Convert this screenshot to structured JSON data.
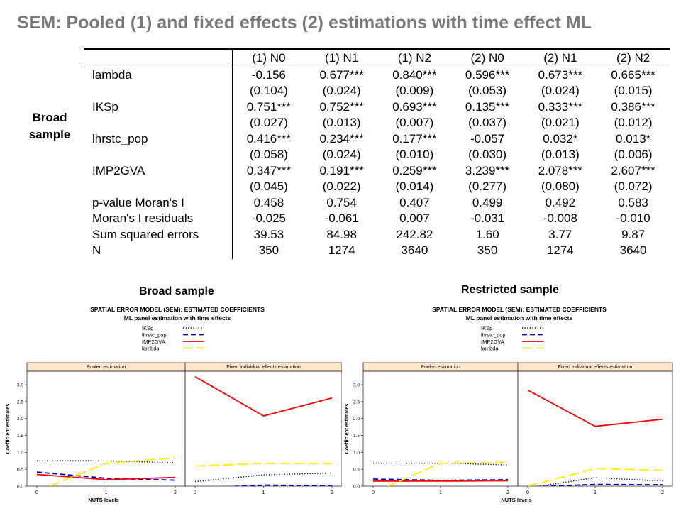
{
  "title": "SEM: Pooled (1) and fixed effects (2) estimations with time effect ML",
  "side_label": "Broad sample",
  "table": {
    "columns": [
      "(1) N0",
      "(1) N1",
      "(1) N2",
      "(2) N0",
      "(2) N1",
      "(2) N2"
    ],
    "rows": [
      {
        "label": "lambda",
        "values": [
          "-0.156",
          "0.677***",
          "0.840***",
          "0.596***",
          "0.673***",
          "0.665***"
        ]
      },
      {
        "label": "",
        "values": [
          "(0.104)",
          "(0.024)",
          "(0.009)",
          "(0.053)",
          "(0.024)",
          "(0.015)"
        ]
      },
      {
        "label": "IKSp",
        "values": [
          "0.751***",
          "0.752***",
          "0.693***",
          "0.135***",
          "0.333***",
          "0.386***"
        ]
      },
      {
        "label": "",
        "values": [
          "(0.027)",
          "(0.013)",
          "(0.007)",
          "(0.037)",
          "(0.021)",
          "(0.012)"
        ]
      },
      {
        "label": "lhrstc_pop",
        "values": [
          "0.416***",
          "0.234***",
          "0.177***",
          "-0.057",
          "0.032*",
          "0.013*"
        ]
      },
      {
        "label": "",
        "values": [
          "(0.058)",
          "(0.024)",
          "(0.010)",
          "(0.030)",
          "(0.013)",
          "(0.006)"
        ]
      },
      {
        "label": "IMP2GVA",
        "values": [
          "0.347***",
          "0.191***",
          "0.259***",
          "3.239***",
          "2.078***",
          "2.607***"
        ]
      },
      {
        "label": "",
        "values": [
          "(0.045)",
          "(0.022)",
          "(0.014)",
          "(0.277)",
          "(0.080)",
          "(0.072)"
        ]
      },
      {
        "label": "p-value Moran's I",
        "values": [
          "0.458",
          "0.754",
          "0.407",
          "0.499",
          "0.492",
          "0.583"
        ]
      },
      {
        "label": "Moran's I residuals",
        "values": [
          "-0.025",
          "-0.061",
          "0.007",
          "-0.031",
          "-0.008",
          "-0.010"
        ]
      },
      {
        "label": "Sum squared errors",
        "values": [
          "39.53",
          "84.98",
          "242.82",
          "1.60",
          "3.77",
          "9.87"
        ]
      },
      {
        "label": "N",
        "values": [
          "350",
          "1274",
          "3640",
          "350",
          "1274",
          "3640"
        ]
      }
    ]
  },
  "chart_data": [
    {
      "type": "line",
      "heading": "Broad sample",
      "title": "SPATIAL ERROR MODEL (SEM): ESTIMATED COEFFICIENTS",
      "subtitle": "ML panel estimation with time effects",
      "xlabel": "NUTS levels",
      "ylabel": "Coefficient estimates",
      "x": [
        0,
        1,
        2
      ],
      "xticks": [
        "0",
        "1",
        "2"
      ],
      "yticks": [
        "0.0",
        "0.5",
        "1.0",
        "1.5",
        "2.0",
        "2.5",
        "3.0"
      ],
      "ylim": [
        0,
        3.4
      ],
      "grid": false,
      "legend_position": "top",
      "panels": [
        {
          "name": "Pooled estimation",
          "series": [
            {
              "name": "IKSp",
              "color": "#000000",
              "dash": "dotted",
              "values": [
                0.751,
                0.752,
                0.693
              ]
            },
            {
              "name": "lhrstc_pop",
              "color": "#0000cc",
              "dash": "dashed",
              "values": [
                0.416,
                0.234,
                0.177
              ]
            },
            {
              "name": "IMP2GVA",
              "color": "#ff0000",
              "dash": "solid",
              "values": [
                0.347,
                0.191,
                0.259
              ]
            },
            {
              "name": "lambda",
              "color": "#ffee00",
              "dash": "longdash",
              "values": [
                -0.156,
                0.677,
                0.84
              ]
            }
          ]
        },
        {
          "name": "Fixed individual effects estimation",
          "series": [
            {
              "name": "IKSp",
              "color": "#000000",
              "dash": "dotted",
              "values": [
                0.135,
                0.333,
                0.386
              ]
            },
            {
              "name": "lhrstc_pop",
              "color": "#0000cc",
              "dash": "dashed",
              "values": [
                -0.057,
                0.032,
                0.013
              ]
            },
            {
              "name": "IMP2GVA",
              "color": "#ff0000",
              "dash": "solid",
              "values": [
                3.239,
                2.078,
                2.607
              ]
            },
            {
              "name": "lambda",
              "color": "#ffee00",
              "dash": "longdash",
              "values": [
                0.596,
                0.673,
                0.665
              ]
            }
          ]
        }
      ]
    },
    {
      "type": "line",
      "heading": "Restricted sample",
      "title": "SPATIAL ERROR MODEL (SEM): ESTIMATED COEFFICIENTS",
      "subtitle": "ML panel estimation with time effects",
      "xlabel": "NUTS levels",
      "ylabel": "Coefficient estimates",
      "x": [
        0,
        1,
        2
      ],
      "xticks": [
        "0",
        "1",
        "2"
      ],
      "yticks": [
        "0.0",
        "0.5",
        "1.0",
        "1.5",
        "2.0",
        "2.5",
        "3.0"
      ],
      "ylim": [
        0,
        3.4
      ],
      "grid": false,
      "legend_position": "top",
      "panels": [
        {
          "name": "Pooled estimation",
          "series": [
            {
              "name": "IKSp",
              "color": "#000000",
              "dash": "dotted",
              "values": [
                0.68,
                0.68,
                0.63
              ]
            },
            {
              "name": "lhrstc_pop",
              "color": "#0000cc",
              "dash": "dashed",
              "values": [
                0.21,
                0.17,
                0.19
              ]
            },
            {
              "name": "IMP2GVA",
              "color": "#ff0000",
              "dash": "solid",
              "values": [
                0.15,
                0.15,
                0.16
              ]
            },
            {
              "name": "lambda",
              "color": "#ffee00",
              "dash": "longdash",
              "values": [
                -0.2,
                0.68,
                0.7
              ]
            }
          ]
        },
        {
          "name": "Fixed individual effects estimation",
          "series": [
            {
              "name": "IKSp",
              "color": "#000000",
              "dash": "dotted",
              "values": [
                -0.05,
                0.25,
                0.15
              ]
            },
            {
              "name": "lhrstc_pop",
              "color": "#0000cc",
              "dash": "dashed",
              "values": [
                -0.02,
                0.05,
                0.04
              ]
            },
            {
              "name": "IMP2GVA",
              "color": "#ff0000",
              "dash": "solid",
              "values": [
                2.84,
                1.77,
                1.98
              ]
            },
            {
              "name": "lambda",
              "color": "#ffee00",
              "dash": "longdash",
              "values": [
                0.0,
                0.52,
                0.47
              ]
            }
          ]
        }
      ]
    }
  ]
}
